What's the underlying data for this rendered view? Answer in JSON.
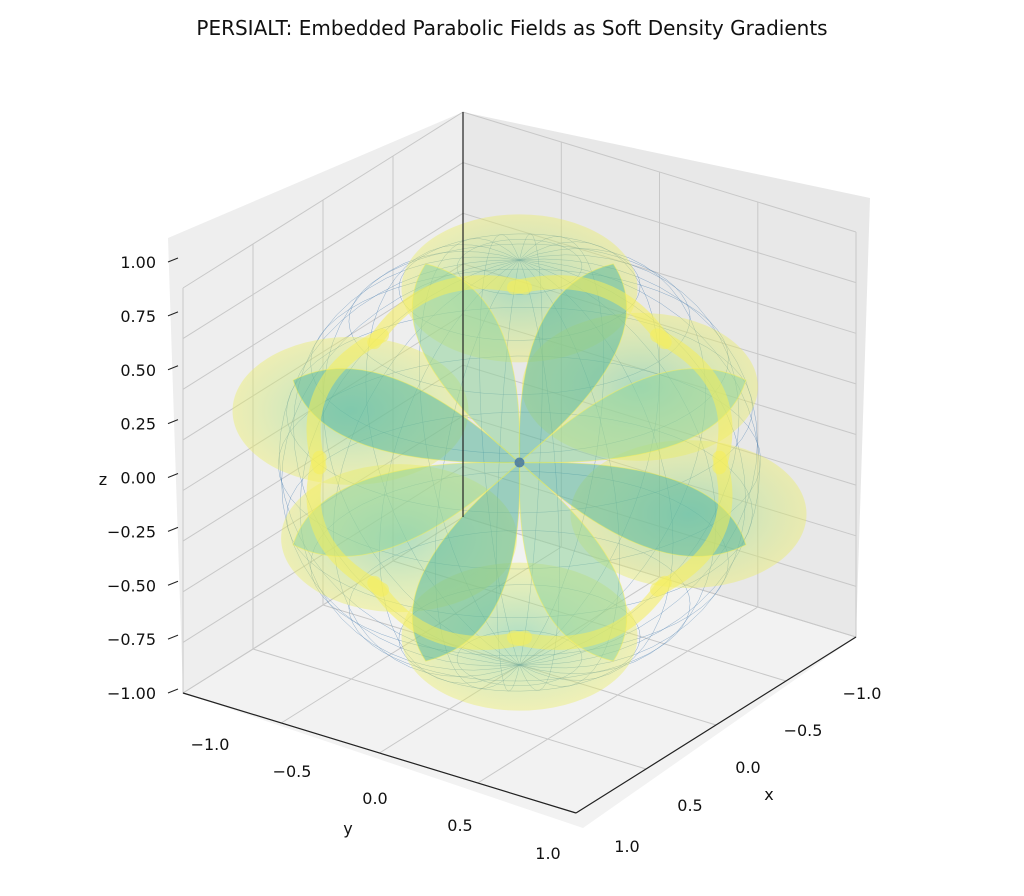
{
  "chart_data": {
    "type": "3d-surface",
    "title": "PERSIALT: Embedded Parabolic Fields as Soft Density Gradients",
    "xlabel": "x",
    "ylabel": "y",
    "zlabel": "z",
    "xlim": [
      -1.0,
      1.0
    ],
    "ylim": [
      -1.0,
      1.0
    ],
    "zlim": [
      -1.0,
      1.0
    ],
    "x_ticks": [
      "−1.0",
      "−0.5",
      "0.0",
      "0.5",
      "1.0"
    ],
    "y_ticks": [
      "−1.0",
      "−0.5",
      "0.0",
      "0.5",
      "1.0"
    ],
    "z_ticks": [
      "−1.00",
      "−0.75",
      "−0.50",
      "−0.25",
      "0.00",
      "0.25",
      "0.50",
      "0.75",
      "1.00"
    ],
    "grid": true,
    "colormap": "viridis",
    "surface": "eight parabolic petal sheets radiating from the origin inside a unit sphere",
    "wireframe": "unit sphere",
    "colors": {
      "petal_high": "#f5ef5a",
      "petal_mid": "#5fc09a",
      "petal_low": "#3d6fa0",
      "wireframe": "#4a7fb0",
      "pane": "#f2f2f2"
    }
  }
}
